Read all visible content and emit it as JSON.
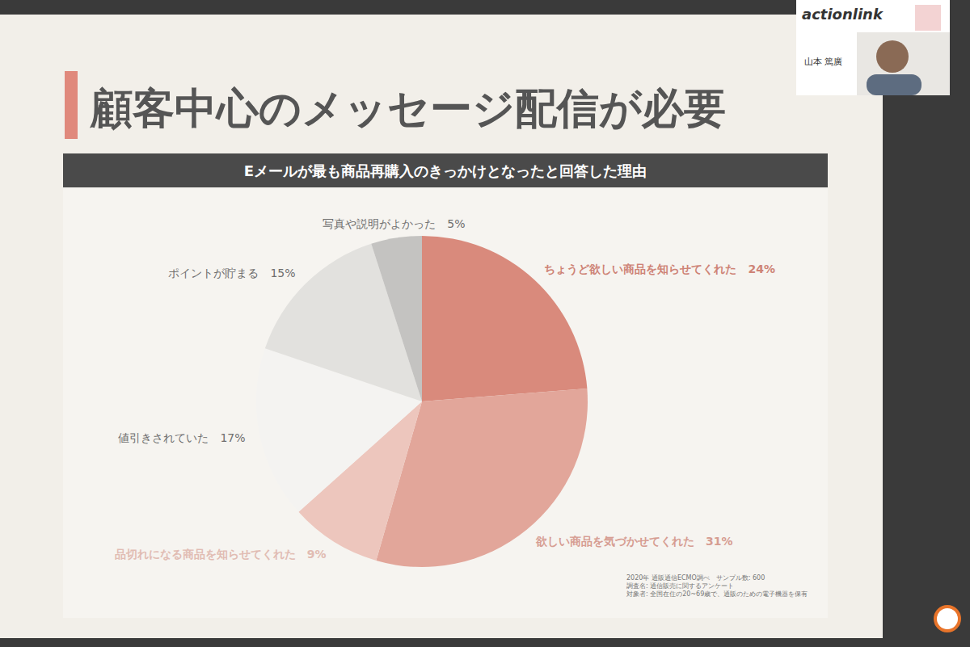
{
  "chart_data": {
    "type": "pie",
    "title": "顧客中心のメッセージ配信が必要",
    "subtitle": "Eメールが最も商品再購入のきっかけとなったと回答した理由",
    "categories": [
      "ちょうど欲しい商品を知らせてくれた",
      "欲しい商品を気づかせてくれた",
      "品切れになる商品を知らせてくれた",
      "値引きされていた",
      "ポイントが貯まる",
      "写真や説明がよかった"
    ],
    "values": [
      24,
      31,
      9,
      17,
      15,
      5
    ],
    "value_labels": [
      "24%",
      "31%",
      "9%",
      "17%",
      "15%",
      "5%"
    ],
    "colors": [
      "#d98a7c",
      "#e2a69a",
      "#edc6bd",
      "#f4f3f1",
      "#e2e1de",
      "#c4c3c1"
    ],
    "data_labels": true,
    "annotations": [
      "2020年 通販通信ECMO調べ　サンプル数: 600",
      "調査名: 通信販売に関するアンケート",
      "対象者: 全国在住の20~69歳で、通販のための電子機器を保有",
      "actionlink",
      "山本 篤廣"
    ]
  }
}
